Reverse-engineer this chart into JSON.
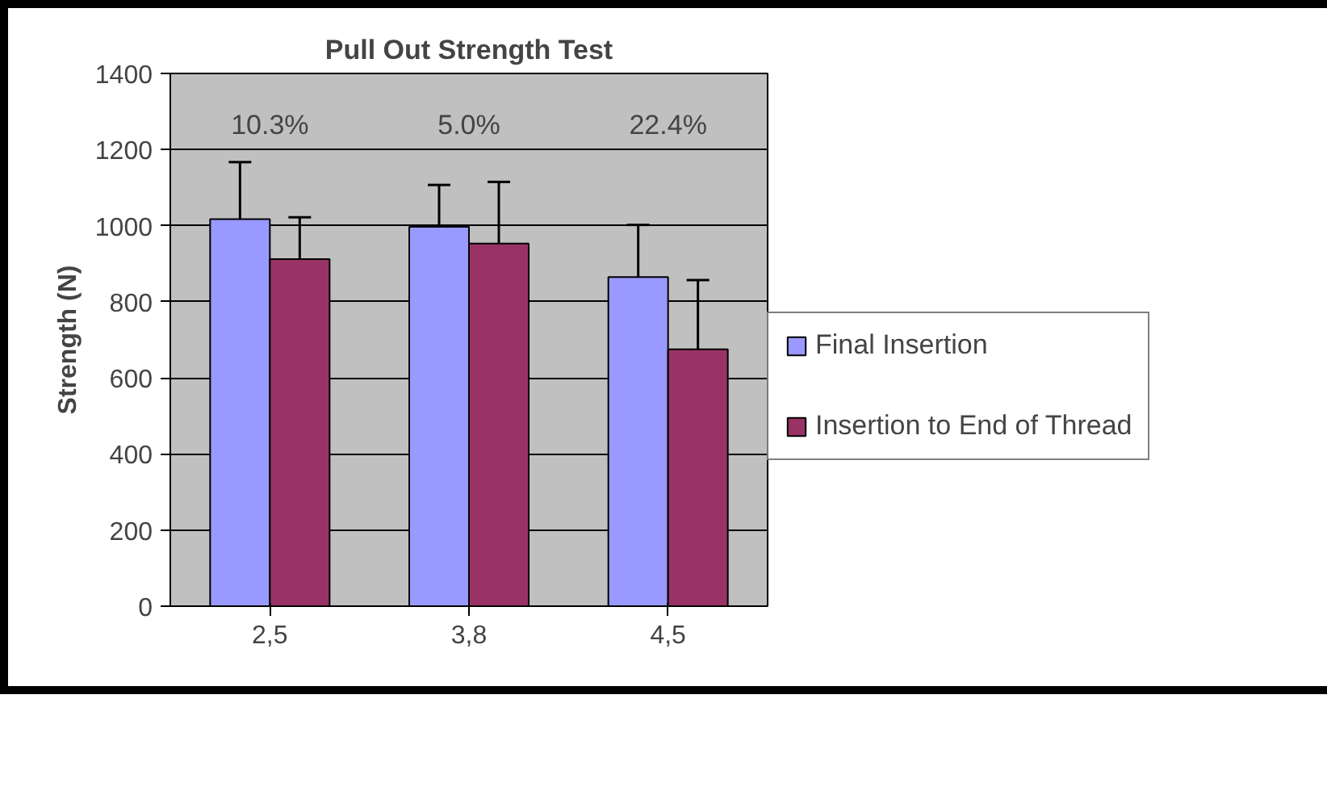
{
  "chart_data": {
    "type": "bar",
    "title": "Pull Out Strength Test",
    "ylabel": "Strength (N)",
    "categories": [
      "2,5",
      "3,8",
      "4,5"
    ],
    "series": [
      {
        "name": "Final Insertion",
        "color": "#9999ff",
        "values": [
          1017,
          997,
          865
        ],
        "errors": [
          150,
          110,
          137
        ]
      },
      {
        "name": "Insertion to End of Thread",
        "color": "#993366",
        "values": [
          912,
          953,
          675
        ],
        "errors": [
          110,
          162,
          182
        ]
      }
    ],
    "ylim": [
      0,
      1400
    ],
    "yticks": [
      0,
      200,
      400,
      600,
      800,
      1000,
      1200,
      1400
    ],
    "grid": "y",
    "legend": "right",
    "annotations": [
      "10.3%",
      "5.0%",
      "22.4%"
    ]
  }
}
